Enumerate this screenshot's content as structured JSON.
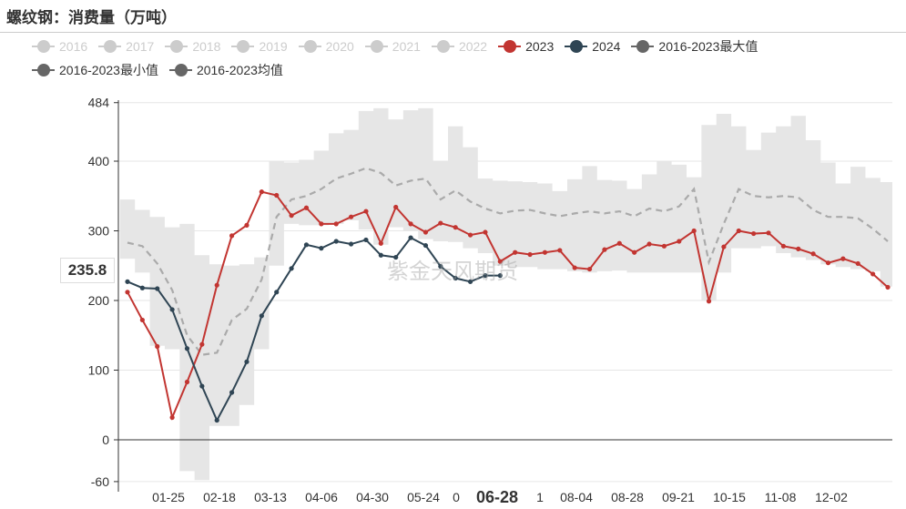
{
  "title": "螺纹钢：消费量（万吨）",
  "watermark": "紫金天风期货",
  "legend": [
    {
      "label": "2016",
      "color": "#cccccc",
      "active": false
    },
    {
      "label": "2017",
      "color": "#cccccc",
      "active": false
    },
    {
      "label": "2018",
      "color": "#cccccc",
      "active": false
    },
    {
      "label": "2019",
      "color": "#cccccc",
      "active": false
    },
    {
      "label": "2020",
      "color": "#cccccc",
      "active": false
    },
    {
      "label": "2021",
      "color": "#cccccc",
      "active": false
    },
    {
      "label": "2022",
      "color": "#cccccc",
      "active": false
    },
    {
      "label": "2023",
      "color": "#c23531",
      "active": true
    },
    {
      "label": "2024",
      "color": "#2f4554",
      "active": true
    },
    {
      "label": "2016-2023最大值",
      "color": "#666666",
      "active": true
    },
    {
      "label": "2016-2023最小值",
      "color": "#666666",
      "active": true
    },
    {
      "label": "2016-2023均值",
      "color": "#666666",
      "active": true
    }
  ],
  "tooltip_y_label": "235.8",
  "tooltip_x_label": "06-28",
  "chart_data": {
    "type": "line",
    "ylim": [
      -60,
      484
    ],
    "y_ticks": [
      -60,
      0,
      100,
      200,
      300,
      400,
      484
    ],
    "x_tick_labels": [
      "01-25",
      "02-18",
      "03-13",
      "04-06",
      "04-30",
      "05-24",
      "06-28",
      "08-04",
      "08-28",
      "09-21",
      "10-15",
      "11-08",
      "12-02"
    ],
    "colors": {
      "s2023": "#c23531",
      "s2024": "#2f4554",
      "band": "#e6e6e6",
      "mean": "#aaaaaa"
    },
    "series": [
      {
        "name": "2023",
        "values": [
          212,
          172,
          134,
          32,
          83,
          137,
          222,
          293,
          308,
          356,
          351,
          322,
          333,
          310,
          310,
          320,
          328,
          282,
          334,
          310,
          298,
          311,
          305,
          294,
          298,
          256,
          269,
          266,
          269,
          272,
          247,
          245,
          273,
          282,
          269,
          281,
          278,
          285,
          300,
          199,
          277,
          300,
          296,
          297,
          278,
          274,
          267,
          254,
          260,
          253,
          238,
          219
        ]
      },
      {
        "name": "2024",
        "values": [
          227,
          218,
          217,
          187,
          131,
          77,
          28,
          68,
          112,
          178,
          212,
          246,
          280,
          275,
          285,
          281,
          287,
          265,
          262,
          290,
          279,
          249,
          232,
          227,
          235.8,
          235.8
        ]
      },
      {
        "name": "2016-2023最大值",
        "values": [
          345,
          330,
          320,
          305,
          310,
          265,
          252,
          250,
          252,
          262,
          400,
          398,
          402,
          415,
          440,
          445,
          472,
          476,
          460,
          473,
          476,
          400,
          450,
          420,
          375,
          372,
          371,
          370,
          368,
          357,
          374,
          393,
          373,
          372,
          360,
          381,
          400,
          395,
          377,
          452,
          468,
          450,
          416,
          441,
          450,
          465,
          430,
          398,
          368,
          392,
          376,
          370
        ]
      },
      {
        "name": "2016-2023最小值",
        "values": [
          260,
          240,
          135,
          130,
          -45,
          -58,
          20,
          20,
          50,
          130,
          250,
          310,
          308,
          308,
          310,
          315,
          302,
          280,
          305,
          300,
          288,
          285,
          284,
          275,
          268,
          250,
          248,
          248,
          245,
          245,
          242,
          240,
          242,
          243,
          240,
          240,
          240,
          240,
          240,
          200,
          240,
          275,
          275,
          278,
          268,
          262,
          258,
          252,
          248,
          245,
          242,
          220
        ]
      },
      {
        "name": "2016-2023均值",
        "values": [
          283,
          278,
          253,
          215,
          150,
          122,
          125,
          172,
          188,
          230,
          320,
          345,
          350,
          360,
          375,
          382,
          390,
          383,
          365,
          372,
          375,
          345,
          358,
          342,
          332,
          325,
          329,
          330,
          325,
          321,
          325,
          328,
          325,
          328,
          321,
          332,
          328,
          335,
          360,
          255,
          310,
          360,
          350,
          348,
          350,
          348,
          330,
          320,
          320,
          318,
          303,
          285
        ]
      }
    ]
  }
}
